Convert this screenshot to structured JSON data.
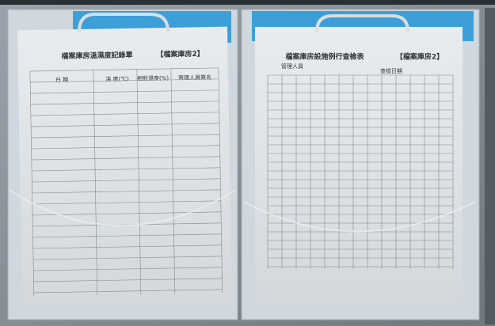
{
  "left_form": {
    "title": "檔案庫房溫濕度記錄單",
    "room": "【檔案庫房2】",
    "headers": [
      "日 期",
      "溫 度(℃)",
      "相對濕度(%)",
      "管理人員簽名"
    ]
  },
  "right_form": {
    "title": "檔案庫房設施例行查檢表",
    "room": "【檔案庫房2】",
    "manager": "管理人員",
    "date": "查檢日期"
  }
}
